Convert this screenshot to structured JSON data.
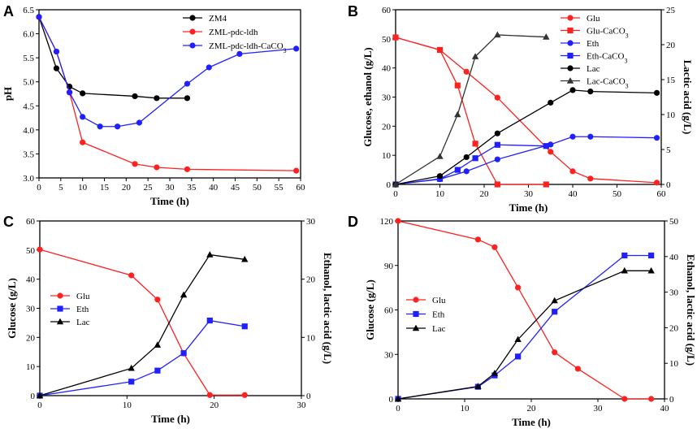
{
  "chart_data": [
    {
      "panel": "A",
      "type": "line",
      "xlabel": "Time (h)",
      "ylabel": "pH",
      "xlim": [
        0,
        60
      ],
      "xticks": [
        0,
        5,
        10,
        15,
        20,
        25,
        30,
        35,
        40,
        45,
        50,
        55,
        60
      ],
      "ylim": [
        3.0,
        6.5
      ],
      "yticks": [
        3.0,
        3.5,
        4.0,
        4.5,
        5.0,
        5.5,
        6.0,
        6.5
      ],
      "legend_position": "top-right",
      "series": [
        {
          "name": "ZM4",
          "color": "#000000",
          "marker": "circle",
          "axis": "left",
          "x": [
            0,
            4,
            7,
            10,
            22,
            27,
            34
          ],
          "y": [
            6.35,
            5.28,
            4.9,
            4.76,
            4.7,
            4.66,
            4.66
          ]
        },
        {
          "name": "ZML-pdc-ldh",
          "color": "#ff2020",
          "marker": "circle",
          "axis": "left",
          "x": [
            0,
            4,
            7,
            10,
            22,
            27,
            34,
            59
          ],
          "y": [
            6.35,
            5.63,
            4.78,
            3.74,
            3.29,
            3.22,
            3.18,
            3.15
          ]
        },
        {
          "name": "ZML-pdc-ldh-CaCO3",
          "color": "#2020ff",
          "marker": "circle",
          "axis": "left",
          "x": [
            0,
            4,
            7,
            10,
            14,
            18,
            23,
            34,
            39,
            46,
            59
          ],
          "y": [
            6.35,
            5.63,
            4.78,
            4.27,
            4.07,
            4.07,
            4.15,
            4.96,
            5.3,
            5.58,
            5.69
          ]
        }
      ]
    },
    {
      "panel": "B",
      "type": "line",
      "xlabel": "Time (h)",
      "ylabel": "Glucose, ethanol (g/L)",
      "ylabel_right": "Lactic acid (g/L)",
      "xlim": [
        0,
        60
      ],
      "xticks": [
        0,
        10,
        20,
        30,
        40,
        50,
        60
      ],
      "ylim": [
        0,
        60
      ],
      "yticks": [
        0,
        10,
        20,
        30,
        40,
        50,
        60
      ],
      "ylim_right": [
        0,
        25
      ],
      "yticks_right": [
        0,
        5,
        10,
        15,
        20,
        25
      ],
      "legend_position": "top-right",
      "series": [
        {
          "name": "Glu",
          "color": "#ff2020",
          "marker": "circle",
          "axis": "left",
          "x": [
            0,
            10,
            16,
            23,
            35,
            40,
            44,
            59
          ],
          "y": [
            50.5,
            46.2,
            38.7,
            29.8,
            11.2,
            4.5,
            2.0,
            0.6
          ]
        },
        {
          "name": "Glu-CaCO3",
          "color": "#ff2020",
          "marker": "square",
          "axis": "left",
          "x": [
            0,
            10,
            14,
            18,
            23,
            34
          ],
          "y": [
            50.5,
            46.2,
            34,
            14,
            0,
            0
          ]
        },
        {
          "name": "Eth",
          "color": "#2020ff",
          "marker": "circle",
          "axis": "left",
          "x": [
            0,
            10,
            16,
            23,
            35,
            40,
            44,
            59
          ],
          "y": [
            0,
            1.8,
            4.5,
            8.6,
            13.7,
            16.4,
            16.4,
            16
          ]
        },
        {
          "name": "Eth-CaCO3",
          "color": "#2020ff",
          "marker": "square",
          "axis": "left",
          "x": [
            0,
            10,
            14,
            18,
            23,
            34
          ],
          "y": [
            0,
            1.9,
            5,
            9,
            13.6,
            13.2
          ]
        },
        {
          "name": "Lac",
          "color": "#000000",
          "marker": "circle",
          "axis": "right",
          "x": [
            0,
            10,
            16,
            23,
            35,
            40,
            44,
            59
          ],
          "y": [
            0,
            1.2,
            3.9,
            7.3,
            11.7,
            13.5,
            13.3,
            13.1
          ]
        },
        {
          "name": "Lac-CaCO3",
          "color": "#333333",
          "marker": "triangle",
          "axis": "right",
          "x": [
            0,
            10,
            14,
            18,
            23,
            34
          ],
          "y": [
            0,
            4.0,
            10.0,
            18.3,
            21.4,
            21.1
          ]
        }
      ]
    },
    {
      "panel": "C",
      "type": "line",
      "xlabel": "Time (h)",
      "ylabel": "Glucose (g/L)",
      "ylabel_right": "Ethanol, lactic acid (g/L)",
      "xlim": [
        0,
        30
      ],
      "xticks": [
        0,
        10,
        20,
        30
      ],
      "ylim": [
        0,
        60
      ],
      "yticks": [
        0,
        10,
        20,
        30,
        40,
        50,
        60
      ],
      "ylim_right": [
        0,
        30
      ],
      "yticks_right": [
        0,
        10,
        20,
        30
      ],
      "legend_position": "middle-left",
      "series": [
        {
          "name": "Glu",
          "color": "#ff2020",
          "marker": "circle",
          "axis": "left",
          "x": [
            0,
            10.5,
            13.5,
            16.5,
            19.5,
            23.5
          ],
          "y": [
            50.2,
            41.3,
            33,
            14.5,
            0.2,
            0.2
          ]
        },
        {
          "name": "Eth",
          "color": "#2020ff",
          "marker": "square",
          "axis": "right",
          "x": [
            0,
            10.5,
            13.5,
            16.5,
            19.5,
            23.5
          ],
          "y": [
            0,
            2.4,
            4.3,
            7.3,
            12.9,
            11.9
          ]
        },
        {
          "name": "Lac",
          "color": "#000000",
          "marker": "triangle",
          "axis": "right",
          "x": [
            0,
            10.5,
            13.5,
            16.5,
            19.5,
            23.5
          ],
          "y": [
            0,
            4.7,
            8.7,
            17.3,
            24.2,
            23.4
          ]
        }
      ]
    },
    {
      "panel": "D",
      "type": "line",
      "xlabel": "Time (h)",
      "ylabel": "Glucose (g/L)",
      "ylabel_right": "Ethanol, lactic acid (g/L)",
      "xlim": [
        0,
        40
      ],
      "xticks": [
        0,
        10,
        20,
        30,
        40
      ],
      "ylim": [
        0,
        120
      ],
      "yticks": [
        0,
        30,
        60,
        90,
        120
      ],
      "ylim_right": [
        0,
        50
      ],
      "yticks_right": [
        0,
        10,
        20,
        30,
        40,
        50
      ],
      "legend_position": "middle-left",
      "series": [
        {
          "name": "Glu",
          "color": "#ff2020",
          "marker": "circle",
          "axis": "left",
          "x": [
            0,
            12,
            14.5,
            18,
            23.5,
            27,
            34,
            38
          ],
          "y": [
            120,
            107.5,
            102.3,
            75.1,
            31.4,
            20.3,
            0,
            0
          ]
        },
        {
          "name": "Eth",
          "color": "#2020ff",
          "marker": "square",
          "axis": "right",
          "x": [
            0,
            12,
            14.5,
            18,
            23.5,
            34,
            38
          ],
          "y": [
            0,
            3.4,
            6.6,
            11.9,
            24.5,
            40.3,
            40.3
          ]
        },
        {
          "name": "Lac",
          "color": "#000000",
          "marker": "triangle",
          "axis": "right",
          "x": [
            0,
            12,
            14.5,
            18,
            23.5,
            34,
            38
          ],
          "y": [
            0,
            3.5,
            7.2,
            16.7,
            27.6,
            36,
            36
          ]
        }
      ]
    }
  ]
}
